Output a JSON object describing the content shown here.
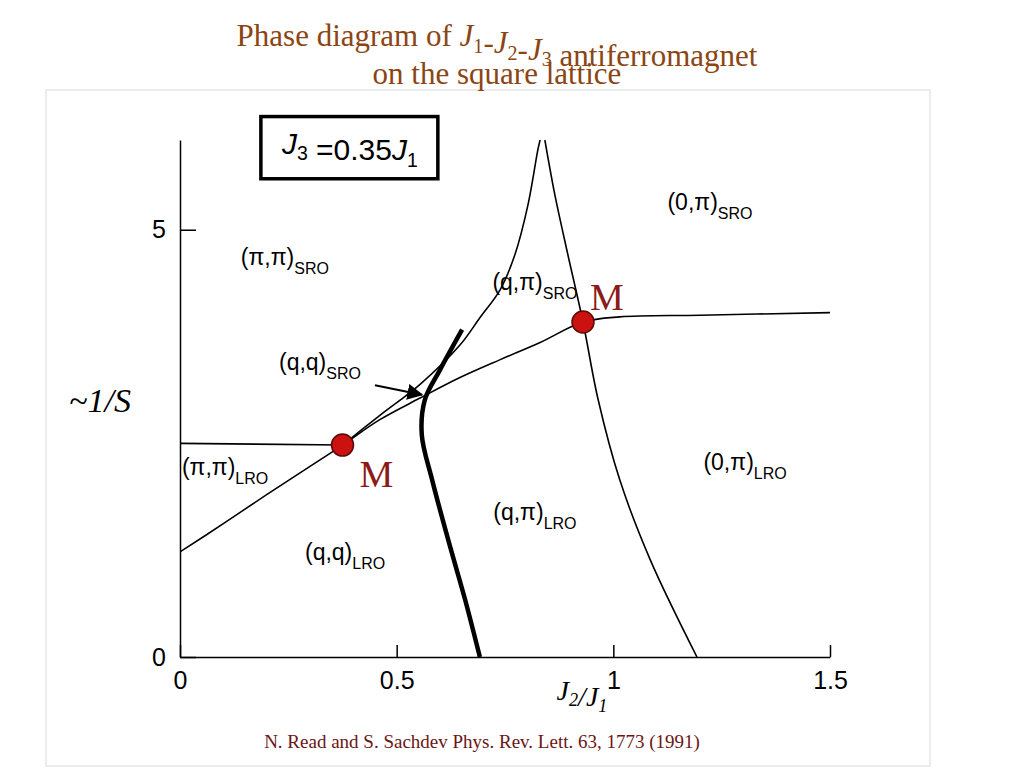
{
  "chart_data": {
    "type": "line",
    "title": [
      "Phase diagram of J1-J2-J3 antiferromagnet",
      "on the square lattice"
    ],
    "x_label": "J2/J1",
    "y_label": "~1/S",
    "xlim": [
      0,
      1.5
    ],
    "ylim": [
      0,
      6.05
    ],
    "xticks": [
      0,
      0.5,
      1,
      1.5
    ],
    "yticks": [
      0,
      5
    ],
    "series": [
      {
        "color": "#000000",
        "line_style": "solid",
        "x": [
          0,
          0.1,
          0.2,
          0.3,
          0.375,
          0.462,
          0.554,
          0.646,
          0.739,
          0.831,
          0.93,
          1.015,
          1.2,
          1.5
        ],
        "values": [
          1.23,
          1.56,
          1.9,
          2.23,
          2.48,
          2.78,
          3.03,
          3.27,
          3.48,
          3.68,
          3.92,
          3.98,
          4.0,
          4.03
        ]
      },
      {
        "color": "#000000",
        "line_style": "solid",
        "x": [
          0,
          0.375
        ],
        "values": [
          2.5,
          2.48
        ]
      },
      {
        "color": "#000000",
        "line_style": "solid",
        "x": [
          0.375,
          0.462,
          0.554,
          0.646,
          0.692,
          0.739,
          0.773,
          0.803,
          0.826,
          0.831
        ],
        "values": [
          2.48,
          2.83,
          3.19,
          3.65,
          3.97,
          4.3,
          4.71,
          5.29,
          5.94,
          6.05
        ]
      },
      {
        "color": "#000000",
        "line_style": "solid",
        "x": [
          0.842,
          0.865,
          0.895,
          0.93,
          0.965,
          1.015,
          1.085,
          1.193
        ],
        "values": [
          6.05,
          5.41,
          4.71,
          3.92,
          3.01,
          2.07,
          1.14,
          0
        ]
      },
      {
        "color": "#000000",
        "line_style": "thick",
        "x": [
          0.651,
          0.6,
          0.565,
          0.558,
          0.582,
          0.619,
          0.658,
          0.692
        ],
        "values": [
          3.83,
          3.36,
          3.01,
          2.6,
          2.07,
          1.37,
          0.67,
          0
        ]
      }
    ],
    "points": [
      {
        "label": "M",
        "x": 0.375,
        "y": 2.48,
        "color": "#cc1111"
      },
      {
        "label": "M",
        "x": 0.93,
        "y": 3.92,
        "color": "#cc1111"
      }
    ],
    "regions": [
      {
        "text": "(π,π)",
        "sub": "SRO",
        "x": 0.242,
        "y": 4.59
      },
      {
        "text": "(0,π)",
        "sub": "SRO",
        "x": 1.223,
        "y": 5.23
      },
      {
        "text": "(q,π)",
        "sub": "SRO",
        "x": 0.819,
        "y": 4.3
      },
      {
        "text": "(q,q)",
        "sub": "SRO",
        "x": 0.323,
        "y": 3.36,
        "arrow": {
          "from": [
            0.45,
            3.18
          ],
          "to": [
            0.558,
            3.07
          ]
        }
      },
      {
        "text": "(π,π)",
        "sub": "LRO",
        "x": 0.104,
        "y": 2.13
      },
      {
        "text": "(0,π)",
        "sub": "LRO",
        "x": 1.304,
        "y": 2.19
      },
      {
        "text": "(q,π)",
        "sub": "LRO",
        "x": 0.819,
        "y": 1.6
      },
      {
        "text": "(q,q)",
        "sub": "LRO",
        "x": 0.381,
        "y": 1.14
      }
    ],
    "box_label": {
      "text": "J3 =0.35J1",
      "x": 0.392,
      "y": 6.02
    },
    "source": "N. Read and S. Sachdev Phys. Rev. Lett. 63, 1773 (1991)"
  }
}
